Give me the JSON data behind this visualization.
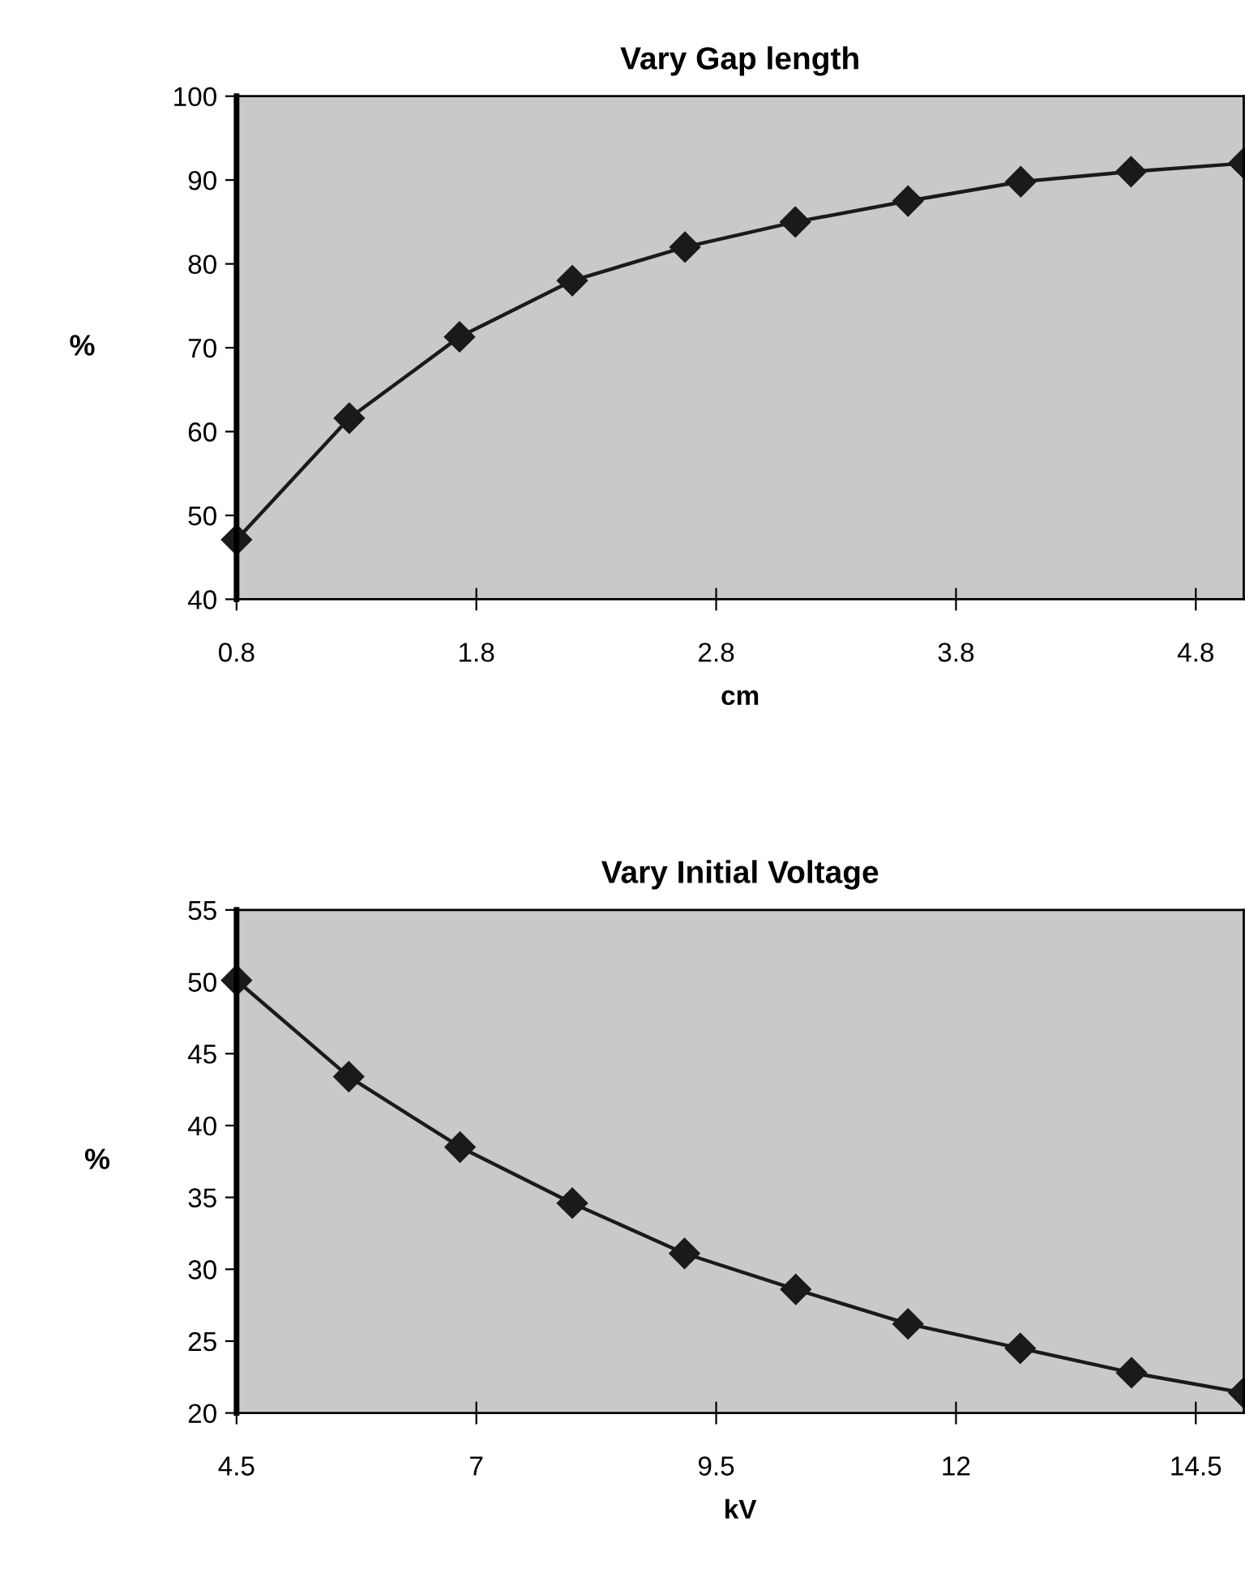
{
  "chart_data": [
    {
      "type": "line",
      "title": "Vary Gap length",
      "xlabel": "cm",
      "ylabel": "%",
      "x": [
        0.8,
        1.27,
        1.73,
        2.2,
        2.67,
        3.13,
        3.6,
        4.07,
        4.53,
        5.0
      ],
      "series": [
        {
          "color": "#1a1a1a",
          "values": [
            47.1,
            61.6,
            71.3,
            78.0,
            82.0,
            85.0,
            87.5,
            89.8,
            91.0,
            92.0
          ]
        }
      ],
      "xlim": [
        0.8,
        5.0
      ],
      "xticks": [
        0.8,
        1.8,
        2.8,
        3.8,
        4.8
      ],
      "ylim": [
        40,
        100
      ],
      "yticks": [
        40,
        50,
        60,
        70,
        80,
        90,
        100
      ],
      "marker": "diamond",
      "line_style": "solid"
    },
    {
      "type": "line",
      "title": "Vary Initial Voltage",
      "xlabel": "kV",
      "ylabel": "%",
      "x": [
        4.5,
        5.67,
        6.83,
        8.0,
        9.17,
        10.33,
        11.5,
        12.67,
        13.83,
        15.0
      ],
      "series": [
        {
          "color": "#1a1a1a",
          "values": [
            50.1,
            43.4,
            38.5,
            34.6,
            31.1,
            28.6,
            26.2,
            24.5,
            22.8,
            21.4
          ]
        }
      ],
      "xlim": [
        4.5,
        15.0
      ],
      "xticks": [
        4.5,
        7,
        9.5,
        12,
        14.5
      ],
      "ylim": [
        20,
        55
      ],
      "yticks": [
        20,
        25,
        30,
        35,
        40,
        45,
        50,
        55
      ],
      "marker": "diamond",
      "line_style": "solid"
    }
  ]
}
